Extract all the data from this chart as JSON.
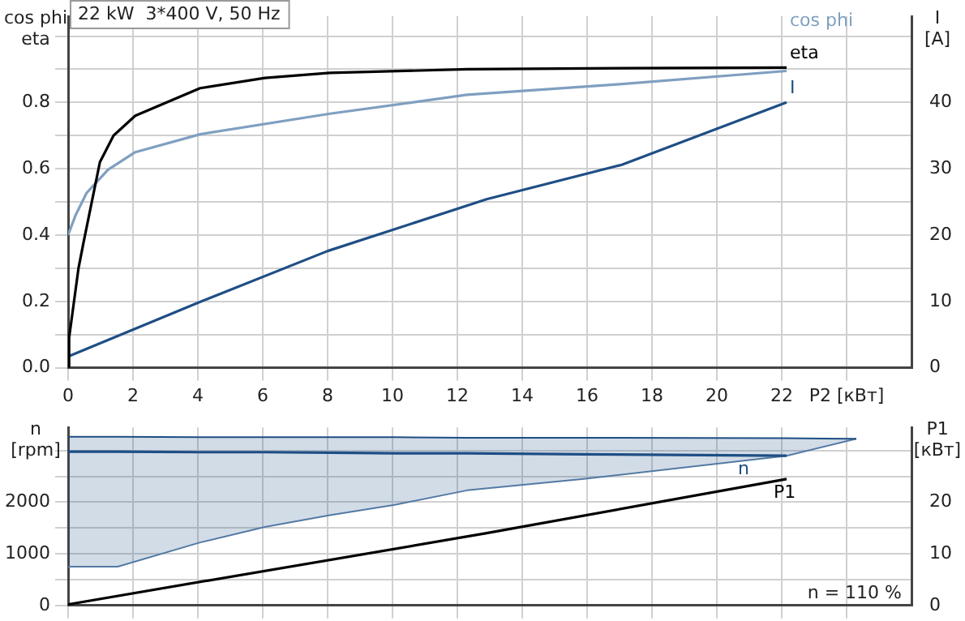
{
  "chart_data": [
    {
      "type": "line",
      "title": "22 kW  3*400 V, 50 Hz",
      "ylabel": "cos phi\neta",
      "y2label": "I\n[A]",
      "xlim": [
        0,
        26
      ],
      "xticks": [
        0,
        2,
        4,
        6,
        8,
        10,
        12,
        14,
        16,
        18,
        20,
        22,
        {
          "value": 24,
          "label": "P2 [кВт]"
        }
      ],
      "ylim": [
        0,
        1.06
      ],
      "yticks": [
        {
          "value": 0,
          "label": "0.0"
        },
        {
          "value": 0.1,
          "label": null
        },
        {
          "value": 0.2,
          "label": "0.2"
        },
        {
          "value": 0.3,
          "label": null
        },
        {
          "value": 0.4,
          "label": "0.4"
        },
        {
          "value": 0.5,
          "label": null
        },
        {
          "value": 0.6,
          "label": "0.6"
        },
        {
          "value": 0.7,
          "label": null
        },
        {
          "value": 0.8,
          "label": "0.8"
        },
        {
          "value": 0.9,
          "label": null
        },
        {
          "value": 1.0,
          "label": null
        }
      ],
      "y2lim": [
        0,
        53
      ],
      "y2ticks": [
        0,
        10,
        20,
        30,
        40
      ],
      "grid": true,
      "legend": false,
      "marker": "none",
      "series": [
        {
          "name": "eta",
          "color": "#000000",
          "x": [
            0,
            0.03,
            0.32,
            0.48,
            0.98,
            1.4,
            2.07,
            4.07,
            6.07,
            8.07,
            12.3,
            17,
            22.15
          ],
          "values": [
            0,
            0.09,
            0.3,
            0.38,
            0.62,
            0.7,
            0.76,
            0.843,
            0.874,
            0.889,
            0.9,
            0.903,
            0.905
          ]
        },
        {
          "name": "cos phi",
          "color": "#7f9fc0",
          "x": [
            0,
            0.23,
            0.57,
            1.23,
            2.07,
            4.07,
            8.07,
            12.3,
            17,
            22.15
          ],
          "values": [
            0.4,
            0.46,
            0.527,
            0.597,
            0.65,
            0.704,
            0.766,
            0.823,
            0.855,
            0.895
          ]
        },
        {
          "name": "I",
          "color": "#1f4e85",
          "axis": "y2",
          "x": [
            0,
            4,
            8,
            12.9,
            17.07,
            22.15
          ],
          "values": [
            1.7,
            9.8,
            17.6,
            25.4,
            30.6,
            40
          ]
        }
      ]
    },
    {
      "type": "line",
      "ylabel": "n\n[rpm]",
      "y2label": "P1\n[кВт]",
      "xlim": [
        0,
        26
      ],
      "xticks": [
        0,
        2,
        4,
        6,
        8,
        10,
        12,
        14,
        16,
        18,
        20,
        22,
        24
      ],
      "ylim": [
        0,
        3450
      ],
      "yticks": [
        0,
        {
          "value": 500,
          "label": null
        },
        1000,
        {
          "value": 1500,
          "label": null
        },
        2000,
        {
          "value": 2500,
          "label": null
        },
        {
          "value": 3000,
          "label": null
        }
      ],
      "y2lim": [
        0,
        34.5
      ],
      "y2ticks": [
        0,
        10,
        20
      ],
      "tick_labels": "y",
      "grid": true,
      "legend": false,
      "marker": "none",
      "annotations": [
        "n = 110 %"
      ],
      "series": [
        {
          "name": "n",
          "color": "#1f4e85",
          "x": [
            0,
            1.53,
            4.07,
            6.07,
            8.07,
            10.07,
            12.3,
            15.9,
            22.15,
            24.3
          ],
          "values": [
            2980,
            2980,
            2970,
            2970,
            2960,
            2950,
            2950,
            2930,
            2900,
            null
          ],
          "lower": [
            750,
            750,
            1220,
            1520,
            1750,
            1950,
            2230,
            2450,
            2900,
            3230
          ],
          "upper": [
            3270,
            3270,
            3260,
            3260,
            3260,
            3260,
            3250,
            3250,
            3240,
            3230
          ]
        },
        {
          "color": "#1f4e85",
          "x": [
            0,
            1.53,
            4.07,
            6.07,
            8.07,
            10.07,
            12.3,
            15.9,
            22.15,
            24.3
          ],
          "values": [
            3270,
            3270,
            3260,
            3260,
            3260,
            3260,
            3250,
            3250,
            3240,
            3230
          ]
        },
        {
          "color": "#5a7fa8",
          "x": [
            0,
            1.53,
            4.07,
            6.07,
            8.07,
            10.07,
            12.3,
            15.9,
            22.15,
            24.3
          ],
          "values": [
            750,
            750,
            1220,
            1520,
            1750,
            1950,
            2230,
            2450,
            2900,
            3230
          ]
        },
        {
          "name": "P1",
          "color": "#000000",
          "axis": "y2",
          "x": [
            0,
            12.9,
            22.15
          ],
          "values": [
            0.2,
            14.0,
            24.5
          ]
        }
      ]
    }
  ]
}
